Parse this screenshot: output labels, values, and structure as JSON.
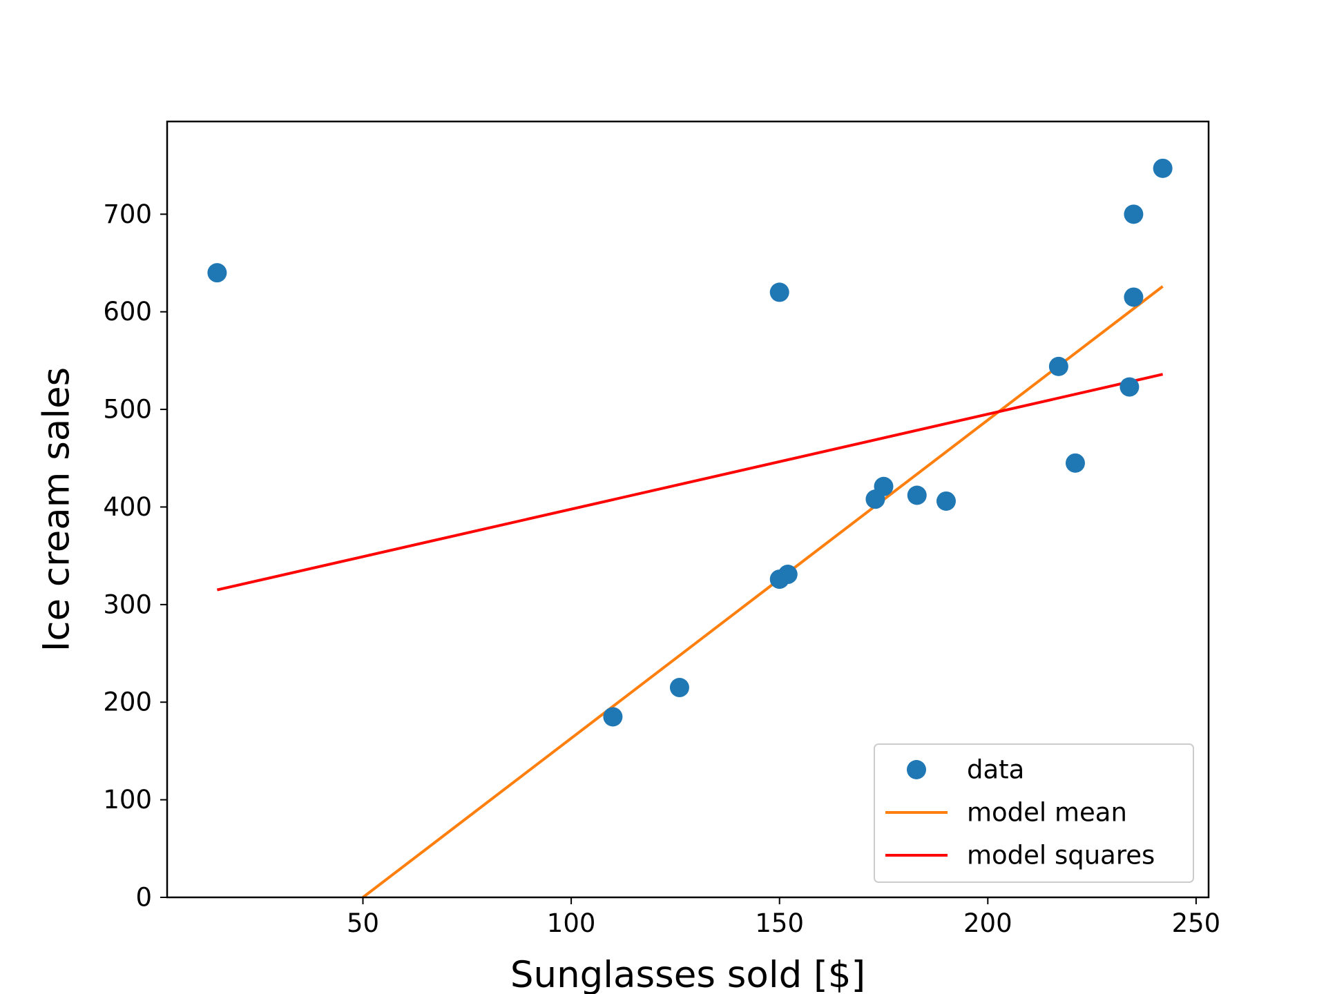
{
  "chart_data": {
    "type": "scatter",
    "title": "",
    "xlabel": "Sunglasses sold [$]",
    "ylabel": "Ice cream sales",
    "xlim": [
      3,
      253
    ],
    "ylim": [
      0,
      795
    ],
    "xticks": [
      50,
      100,
      150,
      200,
      250
    ],
    "yticks": [
      0,
      100,
      200,
      300,
      400,
      500,
      600,
      700
    ],
    "grid": false,
    "legend_position": "lower-right",
    "series": [
      {
        "name": "data",
        "kind": "scatter",
        "color": "#1f77b4",
        "points": [
          {
            "x": 15,
            "y": 640
          },
          {
            "x": 110,
            "y": 185
          },
          {
            "x": 126,
            "y": 215
          },
          {
            "x": 150,
            "y": 620
          },
          {
            "x": 150,
            "y": 326
          },
          {
            "x": 152,
            "y": 331
          },
          {
            "x": 173,
            "y": 408
          },
          {
            "x": 175,
            "y": 421
          },
          {
            "x": 183,
            "y": 412
          },
          {
            "x": 190,
            "y": 406
          },
          {
            "x": 217,
            "y": 544
          },
          {
            "x": 221,
            "y": 445
          },
          {
            "x": 234,
            "y": 523
          },
          {
            "x": 235,
            "y": 615
          },
          {
            "x": 235,
            "y": 700
          },
          {
            "x": 242,
            "y": 747
          }
        ]
      },
      {
        "name": "model mean",
        "kind": "line",
        "color": "#ff7f0e",
        "points": [
          {
            "x": 50,
            "y": 0
          },
          {
            "x": 242,
            "y": 626
          }
        ]
      },
      {
        "name": "model squares",
        "kind": "line",
        "color": "#ff0000",
        "points": [
          {
            "x": 15,
            "y": 315
          },
          {
            "x": 242,
            "y": 536
          }
        ]
      }
    ]
  }
}
